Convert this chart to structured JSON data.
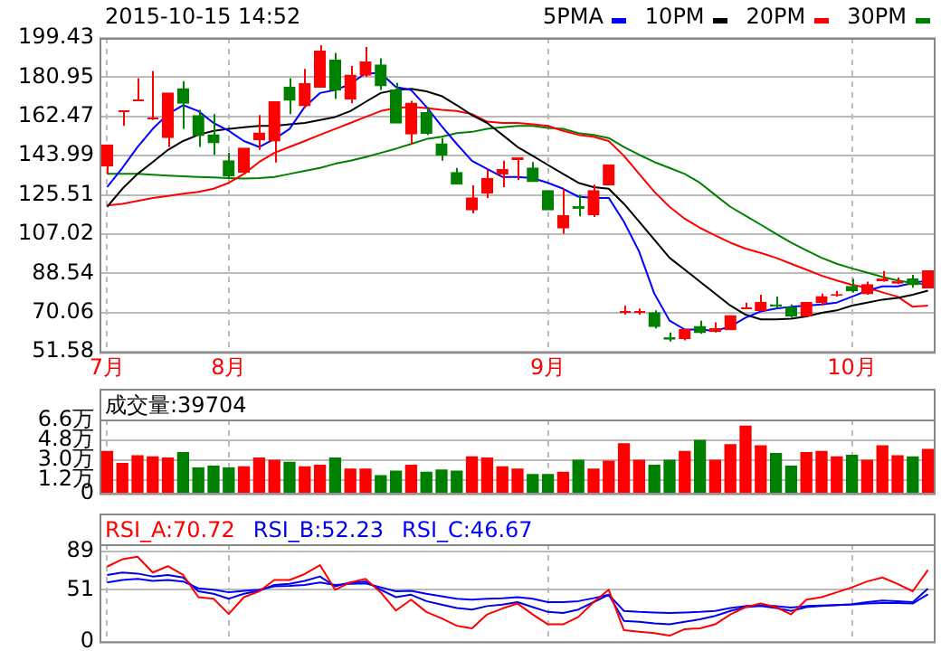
{
  "chart_data": [
    {
      "type": "candlestick",
      "title": "2015-10-15 14:52",
      "legend": "top right",
      "grid": true,
      "marker": "none",
      "categories": [
        "7月",
        null,
        null,
        null,
        null,
        null,
        null,
        null,
        "8月",
        null,
        null,
        null,
        null,
        null,
        null,
        null,
        null,
        null,
        null,
        null,
        null,
        null,
        null,
        null,
        null,
        null,
        null,
        null,
        null,
        "9月",
        null,
        null,
        null,
        null,
        null,
        null,
        null,
        null,
        null,
        null,
        null,
        null,
        null,
        null,
        null,
        null,
        null,
        null,
        null,
        "10月",
        null,
        null,
        null,
        null,
        null
      ],
      "ylim": [
        51.58,
        199.43
      ],
      "yticks": [
        51.58,
        70.06,
        88.54,
        107.02,
        125.51,
        143.99,
        162.47,
        180.95,
        199.43
      ],
      "ohlc": [
        [
          139.1,
          149.0,
          135.4,
          149.0
        ],
        [
          165.0,
          165.0,
          158.0,
          165.0
        ],
        [
          170.8,
          180.5,
          170.2,
          170.8
        ],
        [
          161.6,
          183.9,
          160.8,
          161.6
        ],
        [
          152.6,
          173.5,
          148.1,
          173.5
        ],
        [
          175.5,
          179.1,
          156.6,
          168.7
        ],
        [
          162.8,
          165.6,
          148.1,
          153.5
        ],
        [
          153.8,
          163.6,
          144.4,
          150.1
        ],
        [
          141.6,
          145.3,
          133.2,
          134.6
        ],
        [
          136.3,
          147.5,
          135.4,
          147.5
        ],
        [
          151.5,
          163.1,
          146.7,
          154.6
        ],
        [
          150.9,
          169.3,
          140.8,
          169.3
        ],
        [
          176.3,
          180.5,
          163.6,
          170.1
        ],
        [
          167.6,
          184.8,
          166.4,
          178.0
        ],
        [
          176.3,
          196.0,
          176.3,
          193.2
        ],
        [
          189.0,
          192.4,
          170.7,
          174.9
        ],
        [
          170.7,
          186.2,
          168.7,
          181.9
        ],
        [
          181.9,
          195.2,
          181.1,
          188.1
        ],
        [
          186.7,
          189.8,
          174.9,
          176.9
        ],
        [
          174.9,
          178.3,
          159.4,
          159.4
        ],
        [
          154.3,
          169.8,
          149.5,
          168.7
        ],
        [
          164.2,
          167.0,
          153.8,
          154.6
        ],
        [
          149.5,
          152.3,
          141.6,
          144.4
        ],
        [
          136.0,
          138.2,
          130.6,
          130.6
        ],
        [
          118.5,
          130.0,
          116.8,
          124.1
        ],
        [
          126.4,
          137.4,
          124.1,
          133.2
        ],
        [
          135.4,
          141.6,
          129.2,
          137.4
        ],
        [
          142.2,
          143.0,
          132.6,
          143.0
        ],
        [
          138.2,
          141.0,
          131.8,
          131.8
        ],
        [
          127.5,
          127.5,
          118.5,
          118.5
        ],
        [
          110.0,
          128.4,
          107.2,
          115.7
        ],
        [
          120.0,
          125.5,
          115.4,
          119.2
        ],
        [
          116.2,
          130.3,
          115.1,
          127.5
        ],
        [
          130.3,
          139.6,
          130.3,
          139.6
        ],
        [
          70.6,
          73.4,
          69.1,
          70.6
        ],
        [
          70.6,
          72.0,
          69.1,
          70.6
        ],
        [
          70.0,
          71.2,
          62.6,
          63.5
        ],
        [
          58.2,
          60.7,
          56.5,
          57.6
        ],
        [
          57.9,
          62.1,
          57.0,
          62.1
        ],
        [
          63.5,
          66.3,
          60.1,
          60.7
        ],
        [
          61.2,
          65.5,
          60.7,
          62.6
        ],
        [
          62.1,
          68.6,
          62.1,
          68.6
        ],
        [
          72.5,
          74.8,
          71.9,
          72.5
        ],
        [
          71.1,
          78.5,
          71.1,
          74.8
        ],
        [
          73.7,
          77.6,
          71.9,
          73.1
        ],
        [
          72.5,
          73.9,
          67.7,
          68.6
        ],
        [
          68.6,
          74.8,
          68.3,
          74.8
        ],
        [
          74.8,
          79.0,
          73.4,
          77.6
        ],
        [
          78.2,
          80.3,
          77.6,
          78.5
        ],
        [
          82.4,
          86.1,
          79.6,
          80.4
        ],
        [
          79.0,
          84.7,
          78.5,
          83.2
        ],
        [
          85.2,
          89.7,
          84.7,
          85.9
        ],
        [
          84.0,
          86.6,
          83.5,
          84.7
        ],
        [
          85.9,
          87.9,
          81.8,
          83.2
        ],
        [
          81.8,
          89.7,
          81.8,
          89.7
        ]
      ],
      "colors": [
        "#ff0000",
        "#ff0000",
        "#ff0000",
        "#ff0000",
        "#ff0000",
        "#008000",
        "#008000",
        "#008000",
        "#008000",
        "#ff0000",
        "#ff0000",
        "#ff0000",
        "#008000",
        "#ff0000",
        "#ff0000",
        "#008000",
        "#ff0000",
        "#ff0000",
        "#008000",
        "#008000",
        "#ff0000",
        "#008000",
        "#008000",
        "#008000",
        "#ff0000",
        "#ff0000",
        "#ff0000",
        "#ff0000",
        "#008000",
        "#008000",
        "#ff0000",
        "#008000",
        "#ff0000",
        "#ff0000",
        "#ff0000",
        "#ff0000",
        "#008000",
        "#008000",
        "#ff0000",
        "#008000",
        "#ff0000",
        "#ff0000",
        "#ff0000",
        "#ff0000",
        "#008000",
        "#008000",
        "#ff0000",
        "#ff0000",
        "#ff0000",
        "#008000",
        "#ff0000",
        "#ff0000",
        "#ff0000",
        "#008000",
        "#ff0000"
      ],
      "series": [
        {
          "type": "line",
          "name": "5PMA",
          "color": "#0000ff",
          "values": [
            129.2,
            138.2,
            148.1,
            156.6,
            163.6,
            167.8,
            165.0,
            159.4,
            155.7,
            150.9,
            148.1,
            151.8,
            156.6,
            167.0,
            173.5,
            174.9,
            177.7,
            182.8,
            182.8,
            176.3,
            174.9,
            167.0,
            158.0,
            149.5,
            141.6,
            137.7,
            134.0,
            134.0,
            133.4,
            131.2,
            128.4,
            124.7,
            124.1,
            124.1,
            112.9,
            98.8,
            79.0,
            66.3,
            62.1,
            62.1,
            61.5,
            63.5,
            67.7,
            70.6,
            72.0,
            72.8,
            73.4,
            73.9,
            74.8,
            77.6,
            80.4,
            82.4,
            82.4,
            84.0,
            85.2
          ]
        },
        {
          "type": "line",
          "name": "10PM",
          "color": "#000000",
          "values": [
            119.9,
            128.4,
            135.4,
            141.0,
            146.7,
            150.9,
            153.8,
            155.7,
            156.6,
            157.4,
            158.0,
            158.0,
            158.8,
            159.4,
            160.8,
            162.2,
            165.0,
            169.3,
            173.5,
            174.9,
            175.5,
            174.3,
            172.1,
            167.8,
            163.1,
            159.4,
            153.8,
            148.1,
            143.9,
            139.6,
            135.4,
            131.2,
            129.2,
            128.4,
            121.3,
            112.9,
            104.4,
            95.9,
            90.3,
            84.7,
            79.0,
            73.4,
            69.1,
            66.9,
            66.9,
            67.2,
            68.3,
            70.0,
            71.1,
            73.4,
            74.8,
            76.2,
            77.0,
            78.5,
            80.4
          ]
        },
        {
          "type": "line",
          "name": "20PM",
          "color": "#ff0000",
          "values": [
            120.5,
            121.3,
            122.7,
            124.1,
            125.0,
            126.1,
            126.9,
            128.4,
            131.2,
            135.4,
            141.0,
            145.3,
            148.1,
            150.9,
            153.8,
            156.6,
            159.4,
            162.2,
            165.0,
            166.4,
            167.0,
            166.4,
            165.6,
            165.0,
            163.6,
            160.0,
            159.4,
            159.4,
            158.8,
            158.0,
            155.7,
            153.8,
            152.9,
            150.9,
            143.9,
            135.4,
            127.0,
            119.9,
            114.3,
            110.0,
            106.4,
            103.0,
            100.2,
            98.2,
            95.9,
            93.1,
            90.3,
            87.5,
            85.2,
            83.2,
            81.8,
            79.6,
            77.6,
            72.8,
            73.4
          ]
        },
        {
          "type": "line",
          "name": "30PM",
          "color": "#008000",
          "values": [
            135.4,
            135.4,
            135.4,
            135.0,
            134.6,
            134.3,
            134.0,
            133.7,
            133.4,
            133.2,
            133.4,
            134.0,
            135.4,
            136.8,
            138.2,
            140.2,
            141.6,
            143.3,
            145.3,
            147.3,
            149.5,
            151.8,
            152.9,
            154.6,
            155.2,
            156.6,
            157.4,
            158.0,
            158.0,
            157.1,
            156.6,
            154.6,
            153.8,
            152.3,
            148.1,
            144.4,
            141.0,
            138.2,
            135.4,
            131.2,
            125.5,
            119.9,
            115.7,
            111.5,
            107.2,
            103.0,
            99.4,
            95.9,
            93.1,
            90.9,
            88.9,
            86.9,
            85.2,
            84.0,
            83.2
          ]
        }
      ]
    },
    {
      "type": "bar",
      "title": "成交量:39704",
      "grid": true,
      "tick_labels": "y",
      "categories": [
        null,
        null,
        null,
        null,
        null,
        null,
        null,
        null,
        null,
        null,
        null,
        null,
        null,
        null,
        null,
        null,
        null,
        null,
        null,
        null,
        null,
        null,
        null,
        null,
        null,
        null,
        null,
        null,
        null,
        null,
        null,
        null,
        null,
        null,
        null,
        null,
        null,
        null,
        null,
        null,
        null,
        null,
        null,
        null,
        null,
        null,
        null,
        null,
        null,
        null,
        null,
        null,
        null,
        null,
        null
      ],
      "ylim": [
        0,
        6.7
      ],
      "yticks": [
        0,
        {
          "value": 1.2,
          "label": "1.2万"
        },
        {
          "value": 3.0,
          "label": "3.0万"
        },
        {
          "value": 4.8,
          "label": "4.8万"
        },
        {
          "value": 6.6,
          "label": "6.6万"
        }
      ],
      "values": [
        3.8,
        2.7,
        3.4,
        3.3,
        3.2,
        3.7,
        2.3,
        2.45,
        2.3,
        2.4,
        3.2,
        3.0,
        2.8,
        2.4,
        2.55,
        3.2,
        2.2,
        2.2,
        1.6,
        2.0,
        2.55,
        1.9,
        2.1,
        2.0,
        3.3,
        3.2,
        2.4,
        2.2,
        1.7,
        1.7,
        1.9,
        3.0,
        2.2,
        2.9,
        4.5,
        3.0,
        2.55,
        3.0,
        3.8,
        4.8,
        3.0,
        4.4,
        6.1,
        4.3,
        3.6,
        2.45,
        3.7,
        3.8,
        3.3,
        3.45,
        3.0,
        4.3,
        3.4,
        3.3,
        3.97
      ],
      "colors": [
        "#ff0000",
        "#ff0000",
        "#ff0000",
        "#ff0000",
        "#ff0000",
        "#008000",
        "#008000",
        "#008000",
        "#008000",
        "#ff0000",
        "#ff0000",
        "#ff0000",
        "#008000",
        "#ff0000",
        "#ff0000",
        "#008000",
        "#ff0000",
        "#ff0000",
        "#008000",
        "#008000",
        "#ff0000",
        "#008000",
        "#008000",
        "#008000",
        "#ff0000",
        "#ff0000",
        "#ff0000",
        "#ff0000",
        "#008000",
        "#008000",
        "#ff0000",
        "#008000",
        "#ff0000",
        "#ff0000",
        "#ff0000",
        "#ff0000",
        "#008000",
        "#008000",
        "#ff0000",
        "#008000",
        "#ff0000",
        "#ff0000",
        "#ff0000",
        "#ff0000",
        "#008000",
        "#008000",
        "#ff0000",
        "#ff0000",
        "#ff0000",
        "#008000",
        "#ff0000",
        "#ff0000",
        "#ff0000",
        "#008000",
        "#ff0000"
      ]
    },
    {
      "type": "line",
      "legend": "top left",
      "grid": true,
      "tick_labels": "y",
      "marker": "none",
      "categories": [
        null,
        null,
        null,
        null,
        null,
        null,
        null,
        null,
        null,
        null,
        null,
        null,
        null,
        null,
        null,
        null,
        null,
        null,
        null,
        null,
        null,
        null,
        null,
        null,
        null,
        null,
        null,
        null,
        null,
        null,
        null,
        null,
        null,
        null,
        null,
        null,
        null,
        null,
        null,
        null,
        null,
        null,
        null,
        null,
        null,
        null,
        null,
        null,
        null,
        null,
        null,
        null,
        null,
        null,
        null
      ],
      "ylim": [
        0,
        96
      ],
      "yticks": [
        0,
        51,
        89
      ],
      "series": [
        {
          "name": "RSI_A:70.72",
          "color": "#ff0000",
          "values": [
            73.9,
            81.2,
            83.7,
            68.1,
            74.4,
            65.7,
            43.8,
            42.3,
            27.2,
            43.8,
            49.6,
            60.8,
            60.8,
            66.6,
            75.4,
            51.1,
            58.4,
            61.8,
            48.6,
            30.6,
            41.3,
            29.2,
            22.9,
            15.6,
            13.1,
            26.8,
            32.6,
            37.5,
            26.8,
            17.0,
            17.0,
            24.3,
            38.9,
            51.1,
            11.2,
            9.7,
            8.3,
            5.8,
            12.2,
            13.1,
            17.0,
            26.8,
            34.0,
            37.5,
            34.0,
            26.8,
            41.3,
            43.8,
            48.6,
            53.5,
            59.3,
            63.2,
            56.9,
            49.6,
            70.72
          ]
        },
        {
          "name": "RSI_B:52.23",
          "color": "#0000e6",
          "values": [
            65.7,
            68.1,
            67.1,
            64.2,
            65.7,
            63.2,
            49.6,
            47.2,
            42.3,
            47.2,
            50.1,
            55.9,
            56.9,
            59.8,
            64.2,
            54.5,
            58.4,
            59.3,
            51.1,
            43.8,
            46.2,
            39.9,
            36.5,
            33.1,
            31.6,
            35.0,
            36.5,
            38.9,
            34.0,
            29.2,
            28.2,
            31.6,
            38.9,
            46.2,
            20.4,
            19.5,
            18.0,
            17.0,
            19.5,
            21.9,
            25.3,
            30.2,
            34.0,
            35.0,
            33.1,
            30.2,
            34.0,
            35.0,
            36.0,
            37.0,
            38.9,
            40.4,
            39.9,
            38.9,
            52.23
          ]
        },
        {
          "name": "RSI_C:46.67",
          "color": "#0000ff",
          "values": [
            58.4,
            60.8,
            61.8,
            59.8,
            60.8,
            59.3,
            52.5,
            51.1,
            48.6,
            50.1,
            51.1,
            54.5,
            55.0,
            55.9,
            58.4,
            55.9,
            56.9,
            57.4,
            53.5,
            49.6,
            50.1,
            47.2,
            44.7,
            42.3,
            41.3,
            42.3,
            42.8,
            43.8,
            42.3,
            38.9,
            38.9,
            39.9,
            42.8,
            46.2,
            30.2,
            29.2,
            28.7,
            28.2,
            28.7,
            29.2,
            30.2,
            33.1,
            35.0,
            35.5,
            35.0,
            33.6,
            35.0,
            35.5,
            36.0,
            36.5,
            37.5,
            37.9,
            37.9,
            37.5,
            46.67
          ]
        }
      ]
    }
  ]
}
